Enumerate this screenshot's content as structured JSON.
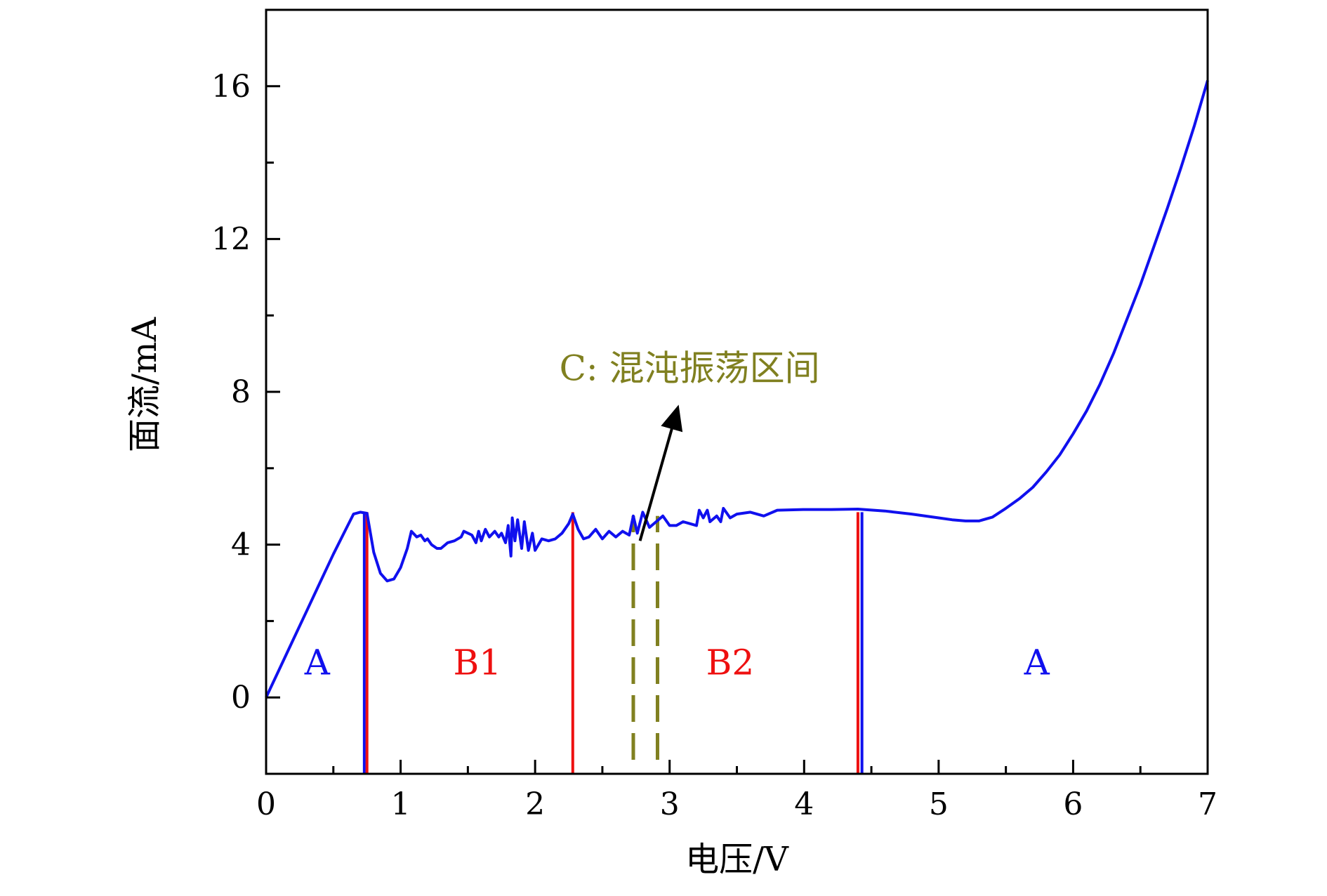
{
  "chart_data": {
    "type": "line",
    "xlabel": "电压/V",
    "ylabel": "面流/mA",
    "xlim": [
      0,
      7
    ],
    "ylim": [
      -2,
      18
    ],
    "x_ticks": [
      "0",
      "1",
      "2",
      "3",
      "4",
      "5",
      "6",
      "7"
    ],
    "y_ticks": [
      "0",
      "4",
      "8",
      "12",
      "16"
    ],
    "grid": false,
    "legend": "none",
    "series": [
      {
        "color": "#1010ee",
        "x": [
          0,
          0.1,
          0.2,
          0.3,
          0.4,
          0.5,
          0.6,
          0.65,
          0.7,
          0.75,
          0.8,
          0.85,
          0.9,
          0.95,
          1.0,
          1.05,
          1.08,
          1.12,
          1.15,
          1.18,
          1.2,
          1.23,
          1.27,
          1.3,
          1.35,
          1.4,
          1.45,
          1.47,
          1.5,
          1.53,
          1.56,
          1.58,
          1.6,
          1.63,
          1.66,
          1.7,
          1.73,
          1.75,
          1.78,
          1.8,
          1.82,
          1.83,
          1.85,
          1.87,
          1.9,
          1.92,
          1.95,
          1.98,
          2.0,
          2.05,
          2.1,
          2.15,
          2.2,
          2.25,
          2.28,
          2.32,
          2.36,
          2.4,
          2.45,
          2.5,
          2.55,
          2.6,
          2.65,
          2.7,
          2.73,
          2.76,
          2.8,
          2.85,
          2.9,
          2.95,
          3.0,
          3.05,
          3.1,
          3.15,
          3.2,
          3.22,
          3.25,
          3.28,
          3.3,
          3.35,
          3.38,
          3.4,
          3.45,
          3.5,
          3.6,
          3.7,
          3.8,
          4.0,
          4.2,
          4.4,
          4.6,
          4.8,
          5.0,
          5.1,
          5.2,
          5.3,
          5.4,
          5.5,
          5.6,
          5.7,
          5.8,
          5.9,
          6.0,
          6.1,
          6.2,
          6.3,
          6.4,
          6.5,
          6.6,
          6.7,
          6.8,
          6.9,
          7.0
        ],
        "values": [
          0.0,
          0.75,
          1.5,
          2.25,
          3.0,
          3.75,
          4.45,
          4.8,
          4.85,
          4.82,
          3.8,
          3.25,
          3.05,
          3.1,
          3.4,
          3.9,
          4.35,
          4.2,
          4.25,
          4.1,
          4.15,
          4.0,
          3.9,
          3.9,
          4.05,
          4.1,
          4.2,
          4.35,
          4.3,
          4.25,
          4.05,
          4.35,
          4.1,
          4.4,
          4.2,
          4.35,
          4.2,
          4.3,
          4.05,
          4.5,
          3.7,
          4.7,
          4.1,
          4.65,
          3.9,
          4.6,
          3.85,
          4.3,
          3.85,
          4.15,
          4.1,
          4.15,
          4.3,
          4.55,
          4.8,
          4.4,
          4.15,
          4.2,
          4.4,
          4.15,
          4.35,
          4.2,
          4.35,
          4.25,
          4.75,
          4.3,
          4.85,
          4.45,
          4.6,
          4.75,
          4.5,
          4.5,
          4.6,
          4.55,
          4.5,
          4.9,
          4.7,
          4.9,
          4.6,
          4.75,
          4.6,
          4.95,
          4.7,
          4.8,
          4.85,
          4.75,
          4.9,
          4.92,
          4.92,
          4.93,
          4.88,
          4.8,
          4.7,
          4.65,
          4.62,
          4.62,
          4.72,
          4.95,
          5.2,
          5.5,
          5.9,
          6.35,
          6.9,
          7.5,
          8.2,
          9.0,
          9.9,
          10.8,
          11.8,
          12.8,
          13.85,
          14.95,
          16.15
        ]
      }
    ],
    "boundaries": [
      {
        "x": 0.73,
        "color": "#1010ee"
      },
      {
        "x": 0.75,
        "color": "#ee1010"
      },
      {
        "x": 2.28,
        "color": "#ee1010"
      },
      {
        "x": 4.4,
        "color": "#ee1010"
      },
      {
        "x": 4.43,
        "color": "#1010ee"
      }
    ],
    "dashed_boundaries": [
      {
        "x": 2.73,
        "color": "#808020"
      },
      {
        "x": 2.91,
        "color": "#808020"
      }
    ],
    "region_labels": [
      {
        "text": "A",
        "x": 0.38,
        "y": 0.6,
        "color": "#1010ee"
      },
      {
        "text": "B1",
        "x": 1.57,
        "y": 0.6,
        "color": "#ee1010"
      },
      {
        "text": "B2",
        "x": 3.45,
        "y": 0.6,
        "color": "#ee1010"
      },
      {
        "text": "A",
        "x": 5.73,
        "y": 0.6,
        "color": "#1010ee"
      }
    ],
    "annotation": {
      "text": "C: 混沌振荡区间",
      "color": "#808020",
      "arrow_from": [
        2.78,
        4.1
      ],
      "arrow_to": [
        3.05,
        7.45
      ],
      "text_at": [
        2.18,
        8.3
      ]
    }
  }
}
